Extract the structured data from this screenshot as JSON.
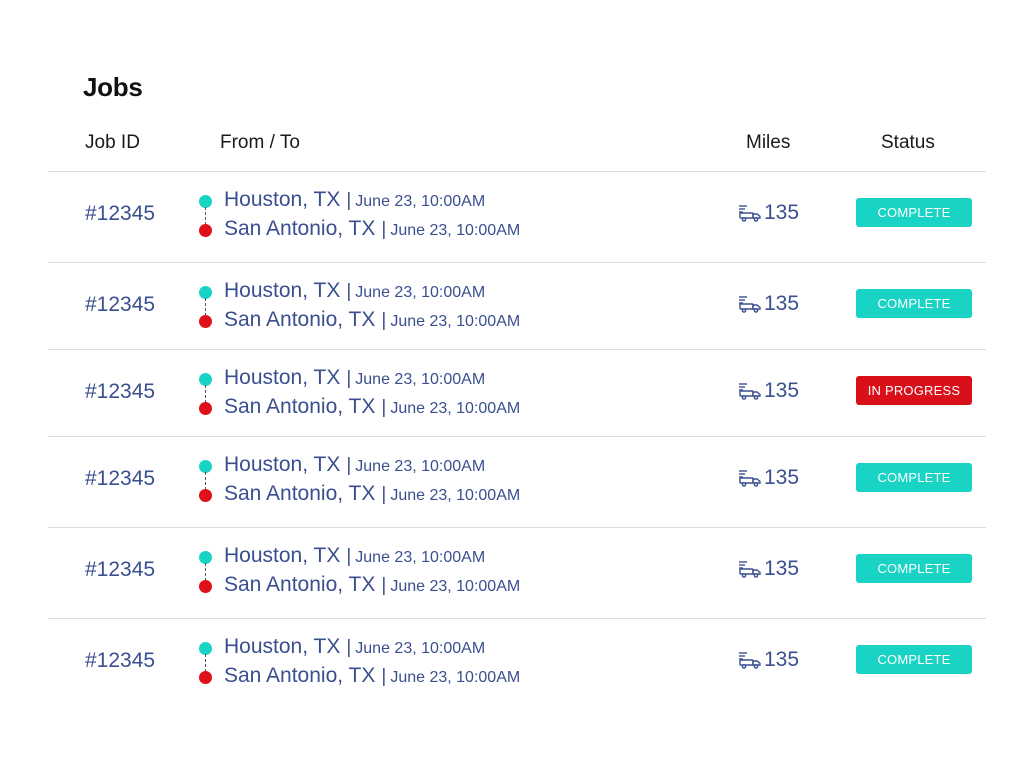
{
  "page": {
    "title": "Jobs"
  },
  "table": {
    "headers": {
      "job_id": "Job  ID",
      "from_to": "From / To",
      "miles": "Miles",
      "status": "Status"
    },
    "rows": [
      {
        "job_id": "#12345",
        "from_city": "Houston, TX",
        "from_time": "June 23, 10:00AM",
        "to_city": "San Antonio, TX",
        "to_time": "June 23, 10:00AM",
        "miles": "135",
        "status": "COMPLETE",
        "status_kind": "complete"
      },
      {
        "job_id": "#12345",
        "from_city": "Houston, TX",
        "from_time": "June 23, 10:00AM",
        "to_city": "San Antonio, TX",
        "to_time": "June 23, 10:00AM",
        "miles": "135",
        "status": "COMPLETE",
        "status_kind": "complete"
      },
      {
        "job_id": "#12345",
        "from_city": "Houston, TX",
        "from_time": "June 23, 10:00AM",
        "to_city": "San Antonio, TX",
        "to_time": "June 23, 10:00AM",
        "miles": "135",
        "status": "IN PROGRESS",
        "status_kind": "in-progress"
      },
      {
        "job_id": "#12345",
        "from_city": "Houston, TX",
        "from_time": "June 23, 10:00AM",
        "to_city": "San Antonio, TX",
        "to_time": "June 23, 10:00AM",
        "miles": "135",
        "status": "COMPLETE",
        "status_kind": "complete"
      },
      {
        "job_id": "#12345",
        "from_city": "Houston, TX",
        "from_time": "June 23, 10:00AM",
        "to_city": "San Antonio, TX",
        "to_time": "June 23, 10:00AM",
        "miles": "135",
        "status": "COMPLETE",
        "status_kind": "complete"
      },
      {
        "job_id": "#12345",
        "from_city": "Houston, TX",
        "from_time": "June 23, 10:00AM",
        "to_city": "San Antonio, TX",
        "to_time": "June 23, 10:00AM",
        "miles": "135",
        "status": "COMPLETE",
        "status_kind": "complete"
      }
    ]
  },
  "icons": {
    "origin": "origin-dot-icon",
    "destination": "destination-dot-icon",
    "miles": "truck-icon"
  },
  "colors": {
    "text_primary": "#3a4f8f",
    "origin": "#19d3c5",
    "destination": "#e0101b",
    "status_complete": "#19d3c5",
    "status_in_progress": "#d9101a",
    "divider": "#dcdcdc"
  }
}
